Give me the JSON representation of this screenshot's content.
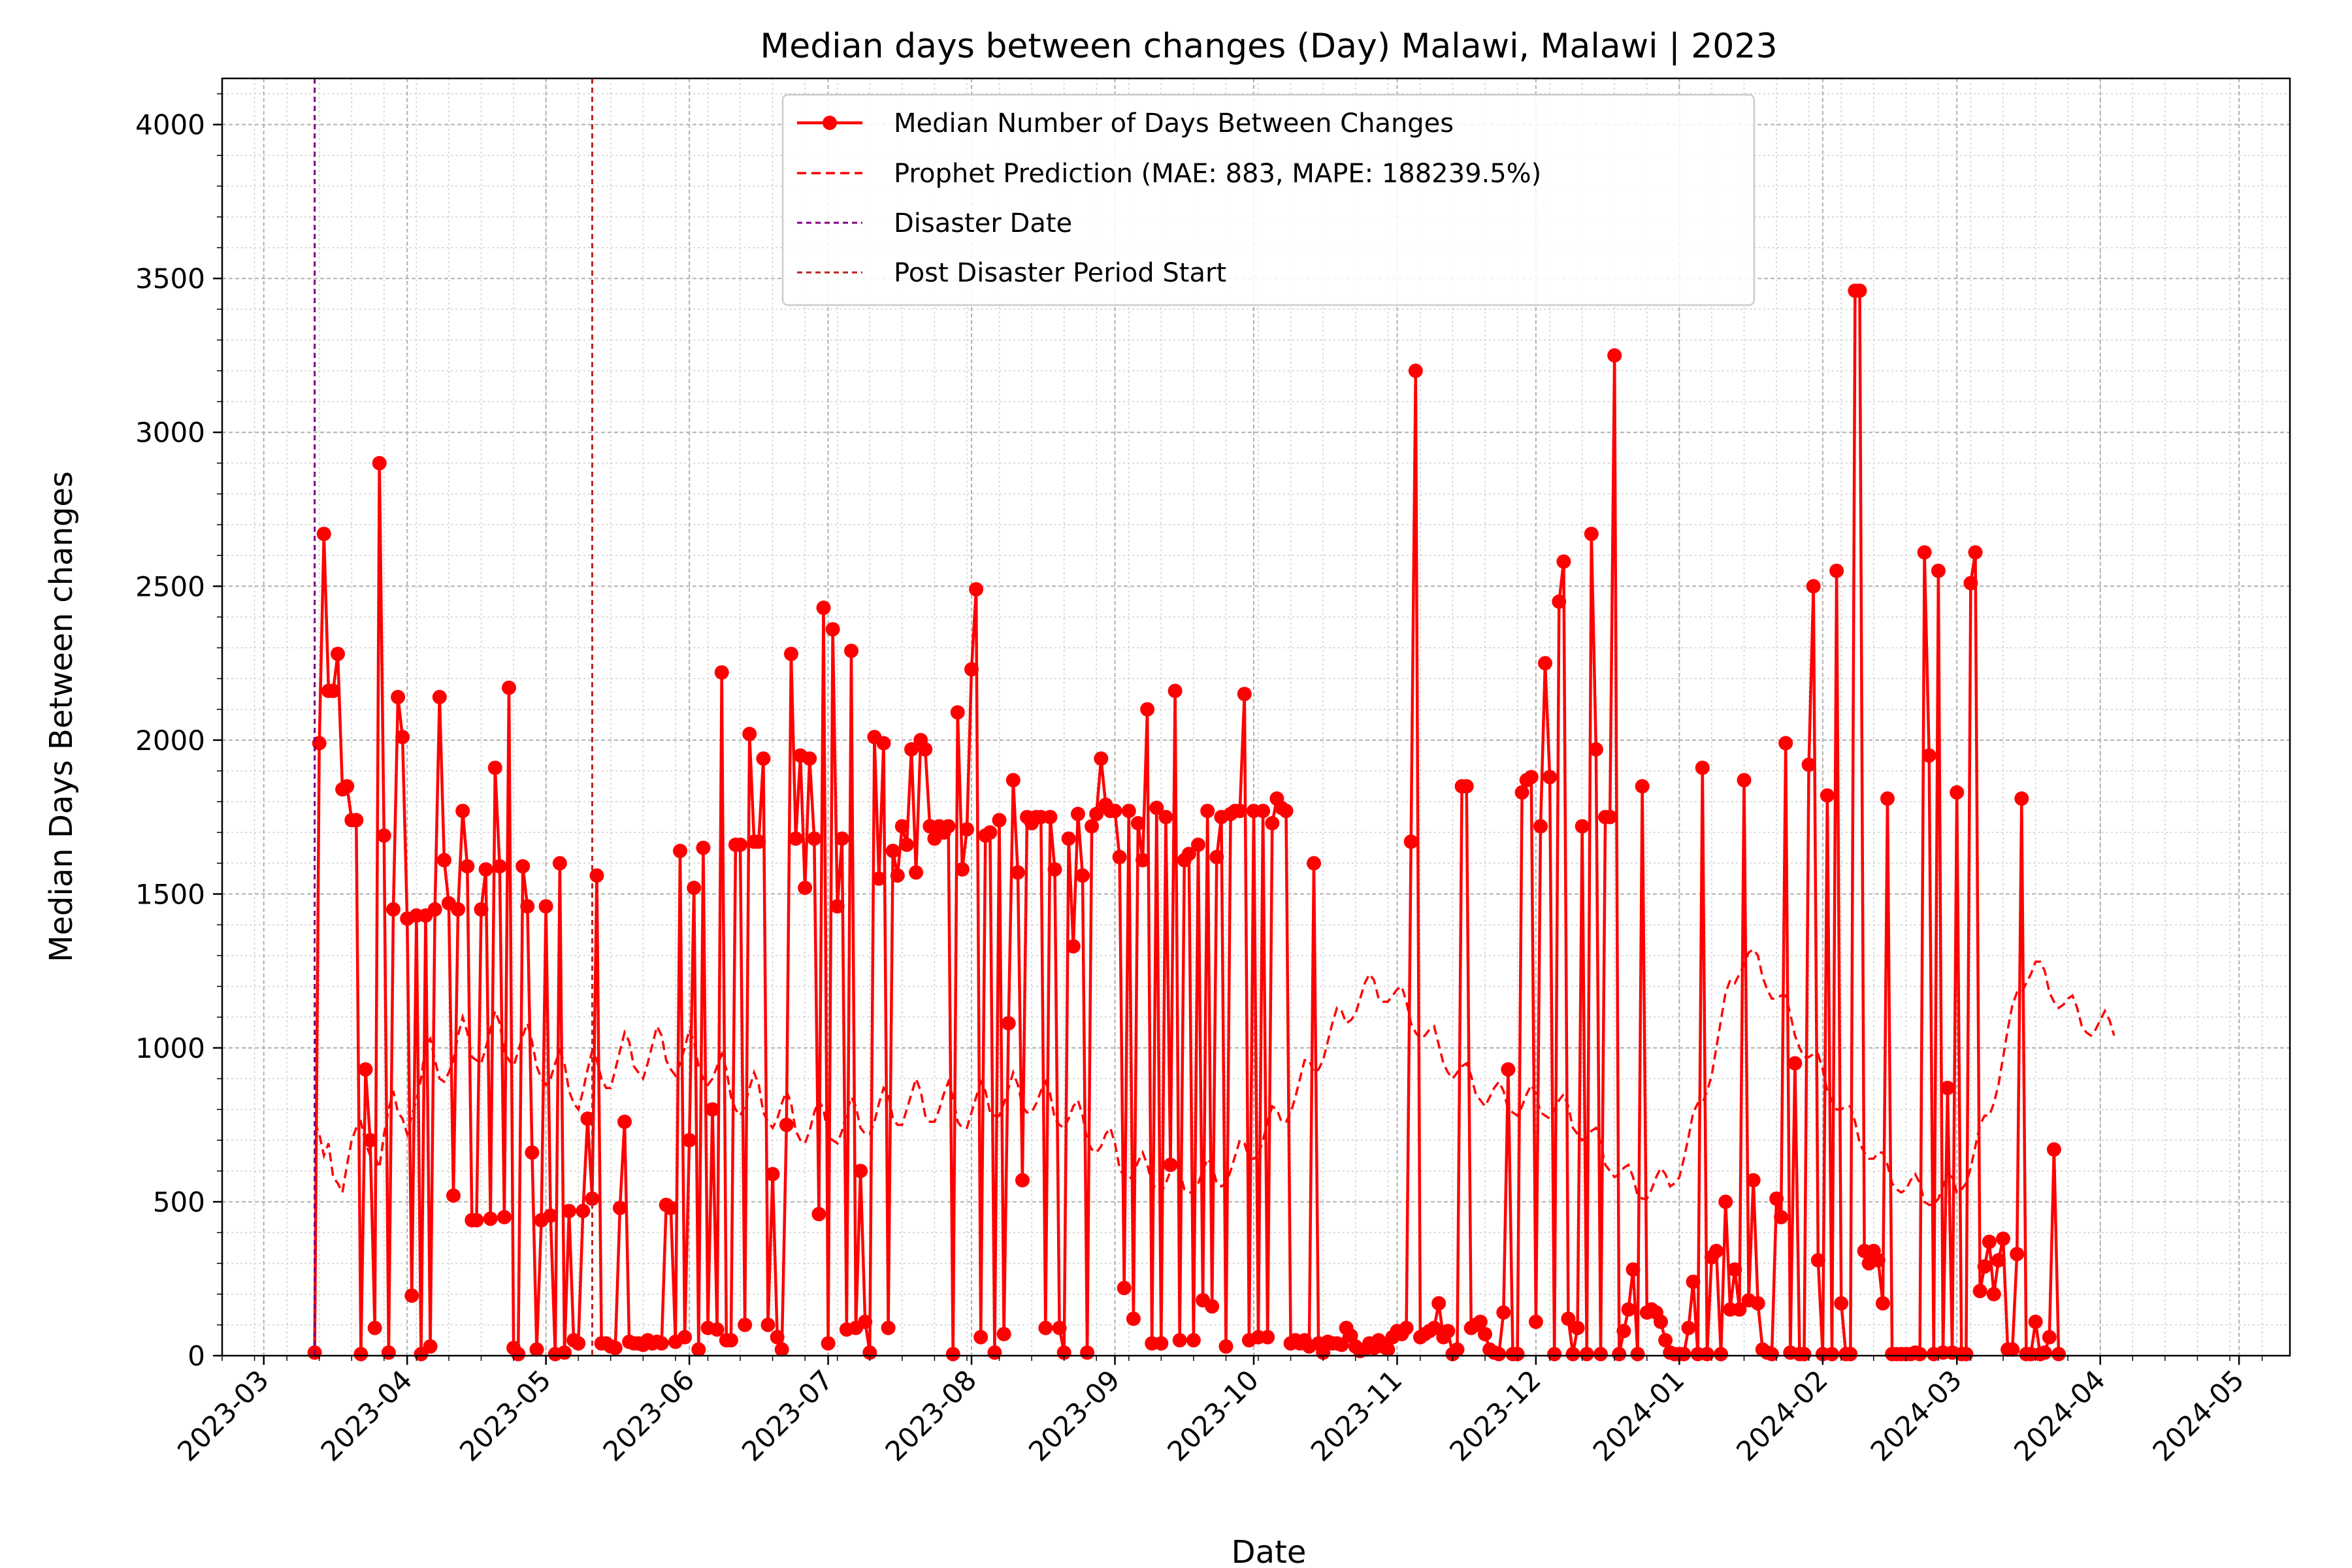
{
  "chart_data": {
    "type": "line",
    "title": "Median days between changes (Day) Malawi, Malawi | 2023",
    "xlabel": "Date",
    "ylabel": "Median Days Between changes",
    "ylim": [
      0,
      4150
    ],
    "y_ticks": [
      0,
      500,
      1000,
      1500,
      2000,
      2500,
      3000,
      3500,
      4000
    ],
    "x_range": [
      "2023-02-20",
      "2024-05-12"
    ],
    "x_ticks": [
      "2023-03",
      "2023-04",
      "2023-05",
      "2023-06",
      "2023-07",
      "2023-08",
      "2023-09",
      "2023-10",
      "2023-11",
      "2023-12",
      "2024-01",
      "2024-02",
      "2024-03",
      "2024-04",
      "2024-05"
    ],
    "grid": true,
    "legend_position": "top-center",
    "legend": [
      "Median Number of Days Between Changes",
      "Prophet Prediction (MAE: 883, MAPE: 188239.5%)",
      "Disaster Date",
      "Post Disaster Period Start"
    ],
    "colors": {
      "actual": "#ff0000",
      "prophet": "#ff0000",
      "disaster": "#800080",
      "post": "#c02020"
    },
    "disaster_date": "2023-03-12",
    "post_disaster_start": "2023-05-11",
    "series": [
      {
        "name": "Median Number of Days Between Changes",
        "start_date": "2023-03-12",
        "step_days": 1,
        "values": [
          10,
          1990,
          2670,
          2160,
          2160,
          2280,
          1840,
          1850,
          1740,
          1740,
          5,
          930,
          700,
          90,
          2900,
          1690,
          10,
          1450,
          2140,
          2010,
          1420,
          195,
          1430,
          5,
          1430,
          30,
          1450,
          2140,
          1610,
          1470,
          520,
          1450,
          1770,
          1590,
          440,
          440,
          1450,
          1580,
          445,
          1910,
          1590,
          450,
          2170,
          25,
          5,
          1590,
          1460,
          660,
          20,
          440,
          1460,
          455,
          5,
          1600,
          10,
          470,
          50,
          40,
          470,
          770,
          510,
          1560,
          40,
          40,
          30,
          25,
          480,
          760,
          45,
          40,
          40,
          35,
          50,
          40,
          45,
          40,
          490,
          480,
          45,
          1640,
          60,
          700,
          1520,
          20,
          1650,
          90,
          800,
          85,
          2220,
          50,
          50,
          1660,
          1660,
          100,
          2020,
          1670,
          1670,
          1940,
          100,
          590,
          60,
          20,
          750,
          2280,
          1680,
          1950,
          1520,
          1940,
          1680,
          460,
          2430,
          40,
          2360,
          1460,
          1680,
          85,
          2290,
          90,
          600,
          110,
          10,
          2010,
          1550,
          1990,
          90,
          1640,
          1560,
          1720,
          1660,
          1970,
          1570,
          2000,
          1970,
          1720,
          1680,
          1720,
          1700,
          1720,
          5,
          2090,
          1580,
          1710,
          2230,
          2490,
          60,
          1690,
          1700,
          10,
          1740,
          70,
          1080,
          1870,
          1570,
          570,
          1750,
          1730,
          1750,
          1750,
          90,
          1750,
          1580,
          90,
          10,
          1680,
          1330,
          1760,
          1560,
          10,
          1720,
          1760,
          1940,
          1790,
          1770,
          1770,
          1620,
          220,
          1770,
          120,
          1730,
          1610,
          2100,
          40,
          1780,
          40,
          1750,
          620,
          2160,
          50,
          1610,
          1630,
          50,
          1660,
          180,
          1770,
          160,
          1620,
          1750,
          30,
          1760,
          1770,
          1770,
          2150,
          50,
          1770,
          60,
          1770,
          60,
          1730,
          1810,
          1780,
          1770,
          40,
          50,
          40,
          50,
          30,
          1600,
          40,
          10,
          45,
          40,
          40,
          35,
          90,
          65,
          30,
          15,
          20,
          40,
          25,
          50,
          30,
          20,
          60,
          80,
          70,
          90,
          1670,
          3200,
          60,
          70,
          80,
          90,
          170,
          60,
          80,
          5,
          20,
          1850,
          1850,
          90,
          100,
          110,
          70,
          20,
          10,
          5,
          140,
          930,
          5,
          5,
          1830,
          1870,
          1880,
          110,
          1720,
          2250,
          1880,
          5,
          2450,
          2580,
          120,
          5,
          90,
          1720,
          5,
          2670,
          1970,
          5,
          1750,
          1750,
          3250,
          5,
          80,
          150,
          280,
          5,
          1850,
          140,
          150,
          140,
          110,
          50,
          10,
          5,
          5,
          5,
          90,
          240,
          5,
          1910,
          5,
          320,
          340,
          5,
          500,
          150,
          280,
          150,
          1870,
          180,
          570,
          170,
          20,
          10,
          5,
          510,
          450,
          1990,
          10,
          950,
          5,
          5,
          1920,
          2500,
          310,
          5,
          1820,
          5,
          2550,
          170,
          5,
          5,
          3460,
          3460,
          340,
          300,
          340,
          310,
          170,
          1810,
          5,
          5,
          5,
          5,
          5,
          10,
          5,
          2610,
          1950,
          5,
          2550,
          10,
          870,
          10,
          1830,
          5,
          5,
          2510,
          2610,
          210,
          290,
          370,
          200,
          310,
          380,
          20,
          20,
          330,
          1810,
          5,
          5,
          110,
          5,
          10,
          60,
          670,
          5
        ]
      },
      {
        "name": "Prophet Prediction (MAE: 883, MAPE: 188239.5%)",
        "start_date": "2023-03-12",
        "step_days": 1,
        "style": "dashed",
        "values": [
          760,
          720,
          650,
          690,
          580,
          560,
          530,
          620,
          700,
          740,
          760,
          690,
          650,
          650,
          610,
          720,
          800,
          860,
          790,
          770,
          720,
          780,
          830,
          900,
          1010,
          1030,
          960,
          900,
          890,
          920,
          960,
          1040,
          1100,
          1050,
          970,
          960,
          950,
          1000,
          1060,
          1120,
          1080,
          990,
          960,
          940,
          990,
          1040,
          1080,
          1020,
          940,
          900,
          880,
          900,
          950,
          990,
          950,
          860,
          820,
          800,
          860,
          930,
          990,
          960,
          900,
          870,
          870,
          930,
          990,
          1050,
          1020,
          940,
          920,
          900,
          950,
          1010,
          1070,
          1040,
          960,
          930,
          910,
          950,
          1000,
          1060,
          1020,
          940,
          900,
          880,
          900,
          940,
          980,
          930,
          840,
          800,
          780,
          810,
          870,
          920,
          880,
          790,
          760,
          740,
          770,
          820,
          860,
          820,
          730,
          700,
          690,
          730,
          790,
          830,
          800,
          710,
          700,
          690,
          730,
          790,
          840,
          810,
          740,
          720,
          720,
          760,
          820,
          870,
          850,
          770,
          750,
          750,
          800,
          850,
          900,
          860,
          780,
          760,
          760,
          800,
          850,
          890,
          840,
          760,
          740,
          740,
          790,
          840,
          890,
          860,
          790,
          780,
          780,
          820,
          870,
          920,
          880,
          810,
          790,
          790,
          820,
          860,
          890,
          850,
          770,
          750,
          740,
          770,
          810,
          830,
          780,
          700,
          670,
          660,
          680,
          720,
          740,
          690,
          610,
          580,
          570,
          590,
          630,
          660,
          620,
          560,
          540,
          530,
          560,
          600,
          630,
          600,
          540,
          530,
          530,
          560,
          600,
          640,
          620,
          560,
          550,
          560,
          600,
          650,
          700,
          690,
          640,
          640,
          650,
          700,
          760,
          810,
          800,
          760,
          760,
          790,
          840,
          900,
          960,
          960,
          920,
          930,
          960,
          1020,
          1080,
          1130,
          1120,
          1080,
          1090,
          1110,
          1160,
          1210,
          1240,
          1220,
          1160,
          1150,
          1150,
          1170,
          1190,
          1200,
          1150,
          1080,
          1050,
          1030,
          1040,
          1060,
          1070,
          1010,
          950,
          920,
          900,
          920,
          940,
          950,
          910,
          850,
          830,
          810,
          840,
          870,
          890,
          860,
          800,
          790,
          780,
          810,
          850,
          880,
          850,
          790,
          780,
          770,
          800,
          830,
          850,
          810,
          740,
          720,
          700,
          710,
          730,
          740,
          690,
          620,
          600,
          580,
          590,
          610,
          620,
          580,
          520,
          510,
          510,
          540,
          580,
          610,
          590,
          550,
          560,
          580,
          640,
          710,
          790,
          820,
          820,
          860,
          910,
          1000,
          1090,
          1180,
          1220,
          1210,
          1240,
          1270,
          1310,
          1320,
          1300,
          1230,
          1190,
          1160,
          1160,
          1170,
          1170,
          1110,
          1040,
          1000,
          970,
          970,
          980,
          980,
          930,
          860,
          830,
          800,
          800,
          810,
          810,
          760,
          690,
          660,
          640,
          640,
          660,
          660,
          620,
          560,
          540,
          530,
          540,
          570,
          590,
          560,
          500,
          490,
          490,
          510,
          550,
          590,
          580,
          530,
          540,
          560,
          610,
          680,
          750,
          780,
          780,
          820,
          880,
          970,
          1060,
          1140,
          1180,
          1180,
          1210,
          1240,
          1280,
          1280,
          1250,
          1180,
          1150,
          1130,
          1140,
          1160,
          1170,
          1130,
          1070,
          1050,
          1040,
          1060,
          1090,
          1120,
          1090,
          1040
        ]
      }
    ]
  }
}
